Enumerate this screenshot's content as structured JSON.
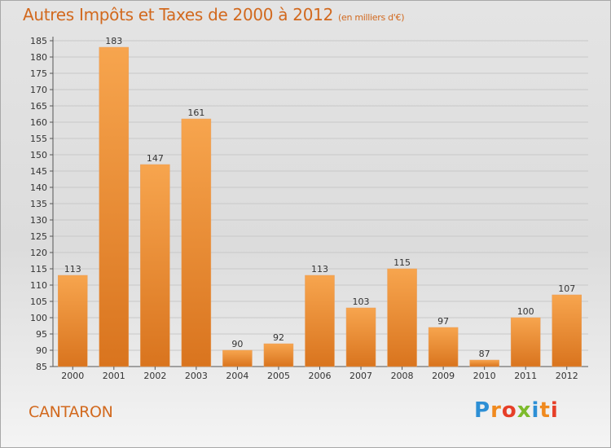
{
  "header": {
    "title": "Autres Impôts et Taxes de 2000 à 2012",
    "subtitle": "(en milliers d'€)"
  },
  "footer": {
    "place": "CANTARON",
    "logo": "Proxiti"
  },
  "colors": {
    "title": "#d2691e",
    "bar_light": "#f7a54e",
    "bar_dark": "#d9741e",
    "grid": "#c8c8c8"
  },
  "chart_data": {
    "type": "bar",
    "title": "Autres Impôts et Taxes de 2000 à 2012",
    "subtitle": "(en milliers d'€)",
    "categories": [
      "2000",
      "2001",
      "2002",
      "2003",
      "2004",
      "2005",
      "2006",
      "2007",
      "2008",
      "2009",
      "2010",
      "2011",
      "2012"
    ],
    "values": [
      113,
      183,
      147,
      161,
      90,
      92,
      113,
      103,
      115,
      97,
      87,
      100,
      107
    ],
    "ylim": [
      85,
      185
    ],
    "yticks": [
      85,
      90,
      95,
      100,
      105,
      110,
      115,
      120,
      125,
      130,
      135,
      140,
      145,
      150,
      155,
      160,
      165,
      170,
      175,
      180,
      185
    ],
    "grid": true,
    "legend": "none"
  }
}
